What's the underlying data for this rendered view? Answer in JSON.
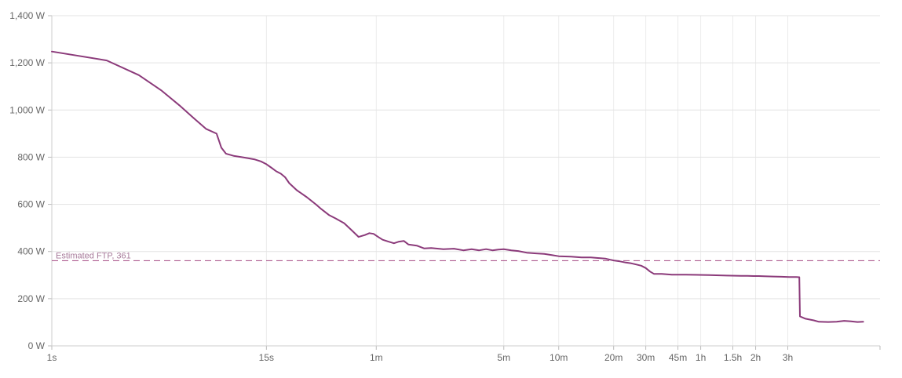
{
  "chart_data": {
    "type": "line",
    "title": "",
    "xlabel": "",
    "ylabel": "",
    "x_scale": "log",
    "x_unit": "seconds",
    "ylim": [
      0,
      1400
    ],
    "grid": true,
    "legend": "none",
    "y_ticks": [
      {
        "value": 0,
        "label": "0 W"
      },
      {
        "value": 200,
        "label": "200 W"
      },
      {
        "value": 400,
        "label": "400 W"
      },
      {
        "value": 600,
        "label": "600 W"
      },
      {
        "value": 800,
        "label": "800 W"
      },
      {
        "value": 1000,
        "label": "1,000 W"
      },
      {
        "value": 1200,
        "label": "1,200 W"
      },
      {
        "value": 1400,
        "label": "1,400 W"
      }
    ],
    "x_ticks": [
      {
        "value": 1,
        "label": "1s"
      },
      {
        "value": 15,
        "label": "15s"
      },
      {
        "value": 60,
        "label": "1m"
      },
      {
        "value": 300,
        "label": "5m"
      },
      {
        "value": 600,
        "label": "10m"
      },
      {
        "value": 1200,
        "label": "20m"
      },
      {
        "value": 1800,
        "label": "30m"
      },
      {
        "value": 2700,
        "label": "45m"
      },
      {
        "value": 3600,
        "label": "1h"
      },
      {
        "value": 5400,
        "label": "1.5h"
      },
      {
        "value": 7200,
        "label": "2h"
      },
      {
        "value": 10800,
        "label": "3h"
      }
    ],
    "series": [
      {
        "color": "#8b3a7a",
        "points": [
          [
            1,
            1248
          ],
          [
            2,
            1210
          ],
          [
            3,
            1148
          ],
          [
            4,
            1082
          ],
          [
            5,
            1020
          ],
          [
            6,
            965
          ],
          [
            7,
            920
          ],
          [
            8,
            900
          ],
          [
            8.5,
            840
          ],
          [
            9,
            815
          ],
          [
            10,
            805
          ],
          [
            11,
            800
          ],
          [
            12,
            795
          ],
          [
            13,
            790
          ],
          [
            14,
            782
          ],
          [
            15,
            770
          ],
          [
            16,
            755
          ],
          [
            17,
            740
          ],
          [
            18,
            730
          ],
          [
            19,
            715
          ],
          [
            20,
            690
          ],
          [
            22,
            660
          ],
          [
            25,
            630
          ],
          [
            28,
            600
          ],
          [
            30,
            580
          ],
          [
            33,
            555
          ],
          [
            36,
            540
          ],
          [
            40,
            520
          ],
          [
            44,
            490
          ],
          [
            48,
            462
          ],
          [
            52,
            470
          ],
          [
            55,
            478
          ],
          [
            58,
            475
          ],
          [
            62,
            460
          ],
          [
            65,
            450
          ],
          [
            70,
            442
          ],
          [
            75,
            435
          ],
          [
            80,
            442
          ],
          [
            85,
            445
          ],
          [
            90,
            430
          ],
          [
            100,
            425
          ],
          [
            110,
            413
          ],
          [
            120,
            415
          ],
          [
            140,
            410
          ],
          [
            160,
            412
          ],
          [
            180,
            405
          ],
          [
            200,
            410
          ],
          [
            220,
            405
          ],
          [
            240,
            410
          ],
          [
            260,
            405
          ],
          [
            280,
            408
          ],
          [
            300,
            410
          ],
          [
            330,
            405
          ],
          [
            360,
            402
          ],
          [
            400,
            395
          ],
          [
            450,
            392
          ],
          [
            500,
            390
          ],
          [
            550,
            385
          ],
          [
            600,
            380
          ],
          [
            700,
            378
          ],
          [
            800,
            375
          ],
          [
            900,
            375
          ],
          [
            1000,
            372
          ],
          [
            1080,
            370
          ],
          [
            1150,
            365
          ],
          [
            1200,
            362
          ],
          [
            1300,
            358
          ],
          [
            1400,
            353
          ],
          [
            1500,
            350
          ],
          [
            1600,
            345
          ],
          [
            1700,
            340
          ],
          [
            1800,
            330
          ],
          [
            1900,
            315
          ],
          [
            2000,
            305
          ],
          [
            2200,
            305
          ],
          [
            2500,
            302
          ],
          [
            3000,
            302
          ],
          [
            4000,
            300
          ],
          [
            5000,
            298
          ],
          [
            6000,
            297
          ],
          [
            6500,
            297
          ],
          [
            7000,
            296
          ],
          [
            7500,
            296
          ],
          [
            8000,
            295
          ],
          [
            9000,
            294
          ],
          [
            10000,
            293
          ],
          [
            11000,
            292
          ],
          [
            12000,
            292
          ],
          [
            12500,
            291
          ],
          [
            12600,
            125
          ],
          [
            13500,
            115
          ],
          [
            15000,
            108
          ],
          [
            16000,
            102
          ],
          [
            18000,
            101
          ],
          [
            20000,
            102
          ],
          [
            22000,
            106
          ],
          [
            24000,
            104
          ],
          [
            26000,
            101
          ],
          [
            28000,
            102
          ]
        ]
      }
    ],
    "annotations": [
      {
        "type": "hline",
        "value": 361,
        "label": "Estimated FTP, 361",
        "color": "#a0407e"
      }
    ]
  }
}
